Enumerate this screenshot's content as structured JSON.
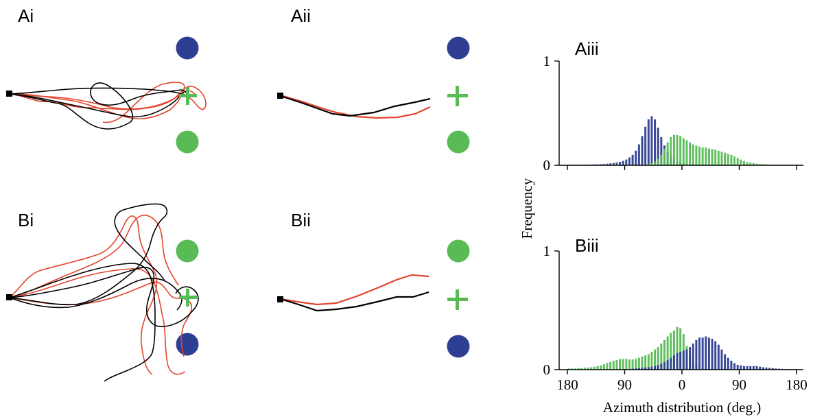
{
  "colors": {
    "blue": "#2e3e92",
    "green": "#58bb55",
    "red": "#e2442c",
    "black": "#000000"
  },
  "panels": {
    "ai": "Ai",
    "aii": "Aii",
    "aiii": "Aiii",
    "bi": "Bi",
    "bii": "Bii",
    "biii": "Biii"
  },
  "icons": {
    "start": "start-square-icon",
    "target": "green-cross-icon",
    "blue_marker": "blue-circle-marker",
    "green_marker": "green-circle-marker"
  },
  "chart_data": [
    {
      "type": "bar",
      "panel": "Aiii",
      "xlabel": "Azimuth distribution (deg.)",
      "ylabel": "Frequency",
      "x_tick_labels": [
        "180",
        "90",
        "0",
        "90",
        "180"
      ],
      "y_tick_labels": [
        "0",
        "1"
      ],
      "ylim": [
        0,
        1
      ],
      "series": [
        {
          "color": "blue",
          "x": [
            -180,
            -175,
            -170,
            -165,
            -160,
            -155,
            -150,
            -145,
            -140,
            -135,
            -130,
            -125,
            -120,
            -115,
            -110,
            -105,
            -100,
            -95,
            -90,
            -85,
            -80,
            -75,
            -70,
            -65,
            -60,
            -55,
            -50,
            -45,
            -40,
            -35,
            -30,
            -25,
            -20,
            -15,
            -10,
            -5,
            0,
            5,
            10,
            15,
            20,
            25,
            30,
            35,
            40,
            45,
            50,
            55,
            60,
            65,
            70,
            75,
            80,
            85,
            90,
            95,
            100,
            105,
            110,
            115,
            120,
            125,
            130,
            135,
            140,
            145,
            150,
            155,
            160,
            165,
            170,
            175
          ],
          "values": [
            0.005,
            0.005,
            0.005,
            0.005,
            0.005,
            0.006,
            0.006,
            0.007,
            0.008,
            0.009,
            0.01,
            0.012,
            0.015,
            0.018,
            0.022,
            0.027,
            0.033,
            0.042,
            0.055,
            0.075,
            0.1,
            0.14,
            0.2,
            0.28,
            0.37,
            0.44,
            0.47,
            0.44,
            0.36,
            0.27,
            0.19,
            0.13,
            0.09,
            0.06,
            0.04,
            0.03,
            0.02,
            0.015,
            0.012,
            0.01,
            0.008,
            0.007,
            0.006,
            0.005,
            0.005,
            0.004,
            0.004,
            0.004,
            0.003,
            0.003,
            0.003,
            0.003,
            0.003,
            0.003,
            0.003,
            0.003,
            0.003,
            0.003,
            0.003,
            0.003,
            0.003,
            0.003,
            0.003,
            0.003,
            0.003,
            0.003,
            0.003,
            0.003,
            0.003,
            0.003,
            0.003,
            0.003
          ]
        },
        {
          "color": "green",
          "x": [
            -180,
            -175,
            -170,
            -165,
            -160,
            -155,
            -150,
            -145,
            -140,
            -135,
            -130,
            -125,
            -120,
            -115,
            -110,
            -105,
            -100,
            -95,
            -90,
            -85,
            -80,
            -75,
            -70,
            -65,
            -60,
            -55,
            -50,
            -45,
            -40,
            -35,
            -30,
            -25,
            -20,
            -15,
            -10,
            -5,
            0,
            5,
            10,
            15,
            20,
            25,
            30,
            35,
            40,
            45,
            50,
            55,
            60,
            65,
            70,
            75,
            80,
            85,
            90,
            95,
            100,
            105,
            110,
            115,
            120,
            125,
            130,
            135,
            140,
            145,
            150,
            155,
            160,
            165,
            170,
            175
          ],
          "values": [
            0.005,
            0.005,
            0.005,
            0.005,
            0.005,
            0.005,
            0.005,
            0.005,
            0.005,
            0.005,
            0.005,
            0.005,
            0.005,
            0.005,
            0.005,
            0.005,
            0.005,
            0.005,
            0.005,
            0.005,
            0.005,
            0.005,
            0.005,
            0.006,
            0.008,
            0.012,
            0.02,
            0.035,
            0.06,
            0.1,
            0.16,
            0.22,
            0.27,
            0.29,
            0.29,
            0.28,
            0.26,
            0.24,
            0.22,
            0.2,
            0.19,
            0.18,
            0.17,
            0.17,
            0.16,
            0.155,
            0.15,
            0.14,
            0.13,
            0.12,
            0.11,
            0.1,
            0.085,
            0.07,
            0.055,
            0.04,
            0.03,
            0.025,
            0.02,
            0.015,
            0.012,
            0.01,
            0.008,
            0.007,
            0.006,
            0.005,
            0.005,
            0.005,
            0.005,
            0.005,
            0.005,
            0.005
          ]
        }
      ]
    },
    {
      "type": "bar",
      "panel": "Biii",
      "xlabel": "Azimuth distribution (deg.)",
      "ylabel": "Frequency",
      "x_tick_labels": [
        "180",
        "90",
        "0",
        "90",
        "180"
      ],
      "y_tick_labels": [
        "0",
        "1"
      ],
      "ylim": [
        0,
        1
      ],
      "series": [
        {
          "color": "green",
          "x": [
            -180,
            -175,
            -170,
            -165,
            -160,
            -155,
            -150,
            -145,
            -140,
            -135,
            -130,
            -125,
            -120,
            -115,
            -110,
            -105,
            -100,
            -95,
            -90,
            -85,
            -80,
            -75,
            -70,
            -65,
            -60,
            -55,
            -50,
            -45,
            -40,
            -35,
            -30,
            -25,
            -20,
            -15,
            -10,
            -5,
            0,
            5,
            10,
            15,
            20,
            25,
            30,
            35,
            40,
            45,
            50,
            55,
            60,
            65,
            70,
            75,
            80,
            85,
            90,
            95,
            100,
            105,
            110,
            115,
            120,
            125,
            130,
            135,
            140,
            145,
            150,
            155,
            160,
            165,
            170,
            175
          ],
          "values": [
            0.01,
            0.01,
            0.01,
            0.012,
            0.014,
            0.016,
            0.018,
            0.02,
            0.025,
            0.03,
            0.035,
            0.045,
            0.055,
            0.065,
            0.075,
            0.08,
            0.09,
            0.09,
            0.09,
            0.085,
            0.085,
            0.09,
            0.1,
            0.11,
            0.12,
            0.13,
            0.15,
            0.17,
            0.19,
            0.22,
            0.25,
            0.28,
            0.31,
            0.33,
            0.36,
            0.35,
            0.3,
            0.2,
            0.12,
            0.07,
            0.04,
            0.025,
            0.015,
            0.01,
            0.008,
            0.006,
            0.005,
            0.005,
            0.004,
            0.004,
            0.003,
            0.003,
            0.003,
            0.003,
            0.003,
            0.003,
            0.003,
            0.003,
            0.003,
            0.003,
            0.003,
            0.003,
            0.003,
            0.003,
            0.003,
            0.003,
            0.003,
            0.003,
            0.003,
            0.003,
            0.003,
            0.003
          ]
        },
        {
          "color": "blue",
          "x": [
            -180,
            -175,
            -170,
            -165,
            -160,
            -155,
            -150,
            -145,
            -140,
            -135,
            -130,
            -125,
            -120,
            -115,
            -110,
            -105,
            -100,
            -95,
            -90,
            -85,
            -80,
            -75,
            -70,
            -65,
            -60,
            -55,
            -50,
            -45,
            -40,
            -35,
            -30,
            -25,
            -20,
            -15,
            -10,
            -5,
            0,
            5,
            10,
            15,
            20,
            25,
            30,
            35,
            40,
            45,
            50,
            55,
            60,
            65,
            70,
            75,
            80,
            85,
            90,
            95,
            100,
            105,
            110,
            115,
            120,
            125,
            130,
            135,
            140,
            145,
            150,
            155,
            160,
            165,
            170,
            175
          ],
          "values": [
            0.003,
            0.003,
            0.003,
            0.003,
            0.003,
            0.003,
            0.003,
            0.003,
            0.003,
            0.003,
            0.003,
            0.003,
            0.003,
            0.003,
            0.003,
            0.003,
            0.003,
            0.004,
            0.005,
            0.006,
            0.008,
            0.01,
            0.012,
            0.015,
            0.018,
            0.02,
            0.025,
            0.03,
            0.04,
            0.05,
            0.065,
            0.08,
            0.1,
            0.12,
            0.14,
            0.15,
            0.16,
            0.17,
            0.19,
            0.22,
            0.25,
            0.27,
            0.27,
            0.28,
            0.27,
            0.26,
            0.24,
            0.21,
            0.17,
            0.13,
            0.1,
            0.075,
            0.055,
            0.04,
            0.035,
            0.03,
            0.03,
            0.03,
            0.03,
            0.03,
            0.025,
            0.02,
            0.018,
            0.015,
            0.012,
            0.01,
            0.008,
            0.007,
            0.006,
            0.005,
            0.005,
            0.005
          ]
        }
      ]
    }
  ]
}
